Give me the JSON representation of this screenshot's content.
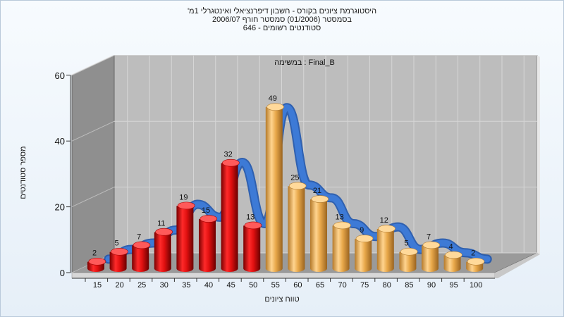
{
  "chart_data": {
    "type": "bar",
    "title_lines": [
      "היסטוגרמת ציונים בקורס - חשבון דיפרנציאלי ואינטגרלי 1מ'",
      "בסמסטר  (01/2006)  סמסטר חורף 2006/07",
      "סטודנטים רשומים - 646"
    ],
    "subtitle": "במשימה : Final_B",
    "xlabel": "טווח ציונים",
    "ylabel": "מספר סטודנטים",
    "categories": [
      "15",
      "20",
      "25",
      "30",
      "35",
      "40",
      "45",
      "50",
      "55",
      "60",
      "65",
      "70",
      "75",
      "80",
      "85",
      "90",
      "95",
      "100"
    ],
    "values": [
      2,
      5,
      7,
      11,
      19,
      15,
      32,
      13,
      49,
      25,
      21,
      13,
      9,
      12,
      5,
      7,
      4,
      2
    ],
    "y_ticks": [
      "0",
      "20",
      "40",
      "60"
    ],
    "ylim": [
      0,
      60
    ],
    "series_colors": {
      "fail": "#e01010",
      "pass": "#e8a84a",
      "curve": "#2f6cc4"
    },
    "fail_threshold_category": "50",
    "curve_description": "smoothed trend ribbon drawn behind the bars",
    "grid": true,
    "legend": "none"
  }
}
